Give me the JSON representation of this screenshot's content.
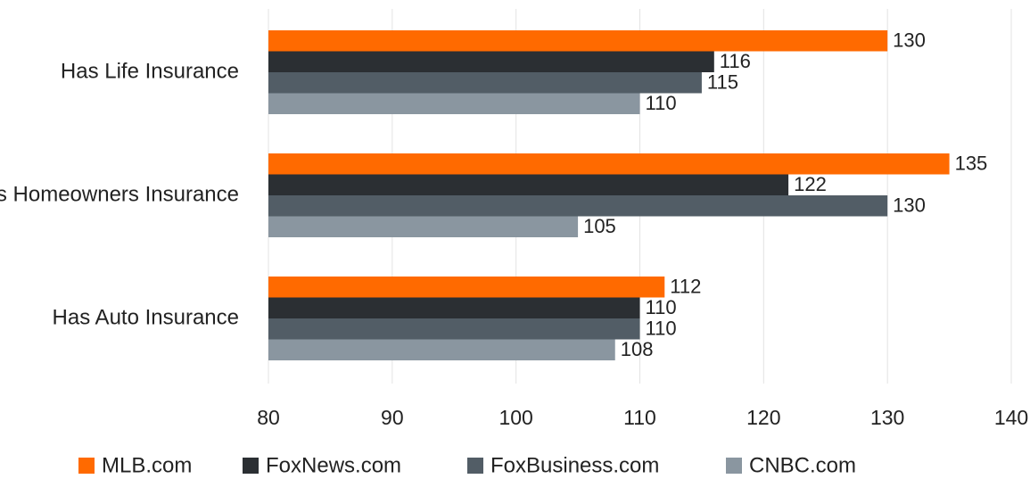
{
  "chart_data": {
    "type": "bar",
    "orientation": "horizontal",
    "categories": [
      "Has Life Insurance",
      "Has Homeowners Insurance",
      "Has Auto Insurance"
    ],
    "series": [
      {
        "name": "MLB.com",
        "color": "#ff6a00",
        "values": [
          130,
          135,
          112
        ]
      },
      {
        "name": "FoxNews.com",
        "color": "#2b2f33",
        "values": [
          116,
          122,
          110
        ]
      },
      {
        "name": "FoxBusiness.com",
        "color": "#525d66",
        "values": [
          115,
          130,
          110
        ]
      },
      {
        "name": "CNBC.com",
        "color": "#8a96a0",
        "values": [
          110,
          105,
          108
        ]
      }
    ],
    "xlim": [
      80,
      140
    ],
    "xticks": [
      80,
      90,
      100,
      110,
      120,
      130,
      140
    ],
    "grid": true,
    "legend": "bottom"
  }
}
